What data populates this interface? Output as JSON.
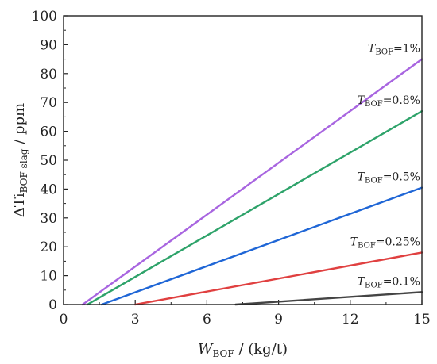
{
  "chart_data": {
    "type": "line",
    "xlabel": {
      "main": "W",
      "sub": "BOF",
      "rest": " / (kg/t)"
    },
    "ylabel": {
      "main": "ΔTi",
      "sub": "BOF slag",
      "rest": " / ppm"
    },
    "xlim": [
      0,
      15
    ],
    "ylim": [
      0,
      100
    ],
    "xticks": [
      0,
      3,
      6,
      9,
      12,
      15
    ],
    "yticks": [
      0,
      10,
      20,
      30,
      40,
      50,
      60,
      70,
      80,
      90,
      100
    ],
    "grid": false,
    "series": [
      {
        "name": {
          "main": "T",
          "sub": "BOF",
          "rest": "=1%"
        },
        "color": "#a865e0",
        "x": [
          0.8,
          15
        ],
        "y": [
          0,
          85
        ]
      },
      {
        "name": {
          "main": "T",
          "sub": "BOF",
          "rest": "=0.8%"
        },
        "color": "#2ea36a",
        "x": [
          1.0,
          15
        ],
        "y": [
          0,
          67
        ]
      },
      {
        "name": {
          "main": "T",
          "sub": "BOF",
          "rest": "=0.5%"
        },
        "color": "#1f66d6",
        "x": [
          1.6,
          15
        ],
        "y": [
          0,
          40.5
        ]
      },
      {
        "name": {
          "main": "T",
          "sub": "BOF",
          "rest": "=0.25%"
        },
        "color": "#e04040",
        "x": [
          3.0,
          15
        ],
        "y": [
          0,
          18
        ]
      },
      {
        "name": {
          "main": "T",
          "sub": "BOF",
          "rest": "=0.1%"
        },
        "color": "#444444",
        "x": [
          7.2,
          15
        ],
        "y": [
          0,
          4.3
        ]
      }
    ]
  }
}
